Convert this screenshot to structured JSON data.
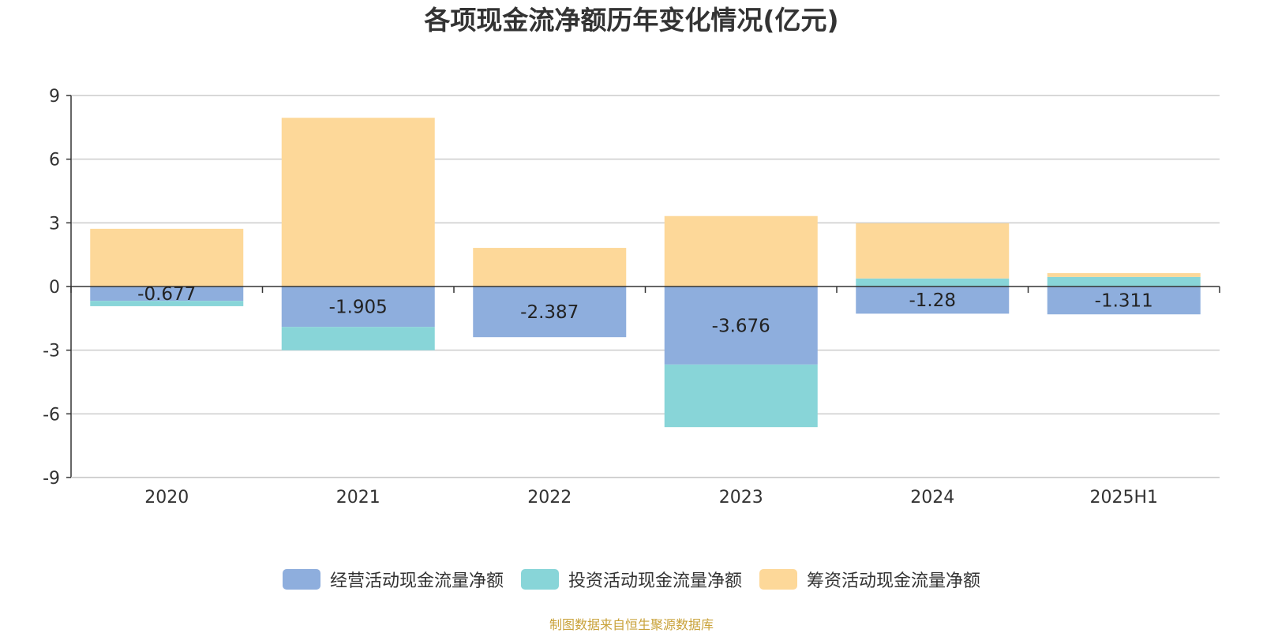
{
  "chart_data": {
    "type": "bar",
    "stacked": true,
    "title": "各项现金流净额历年变化情况(亿元)",
    "categories": [
      "2020",
      "2021",
      "2022",
      "2023",
      "2024",
      "2025H1"
    ],
    "ylim": [
      -9,
      9
    ],
    "yticks": [
      "9",
      "6",
      "3",
      "0",
      "-3",
      "-6",
      "-9"
    ],
    "grid": true,
    "legend_position": "bottom",
    "series": [
      {
        "name": "经营活动现金流量净额",
        "color": "#8eaedd",
        "values": [
          -0.677,
          -1.905,
          -2.387,
          -3.676,
          -1.28,
          -1.311
        ],
        "labels": [
          "-0.677",
          "-1.905",
          "-2.387",
          "-3.676",
          "-1.28",
          "-1.311"
        ]
      },
      {
        "name": "投资活动现金流量净额",
        "color": "#88d5d8",
        "values": [
          -0.25,
          -1.1,
          0,
          -2.95,
          0.38,
          0.45
        ]
      },
      {
        "name": "筹资活动现金流量净额",
        "color": "#fdd899",
        "values": [
          2.72,
          7.95,
          1.82,
          3.32,
          2.6,
          0.18
        ]
      }
    ]
  },
  "footer": {
    "source": "制图数据来自恒生聚源数据库"
  }
}
